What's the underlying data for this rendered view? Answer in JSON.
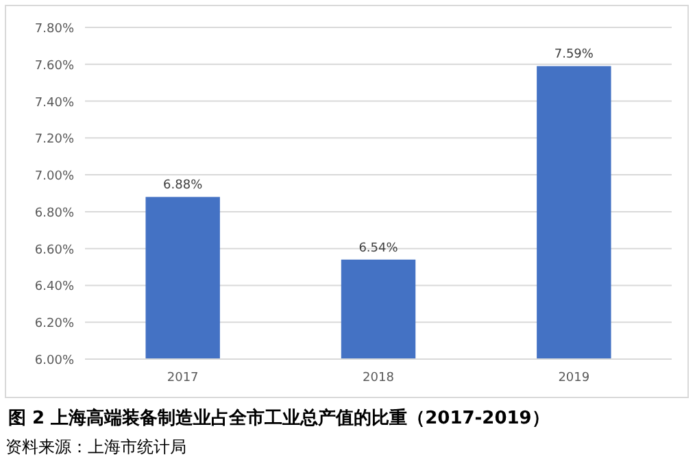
{
  "chart_data": {
    "type": "bar",
    "title": "图 2 上海高端装备制造业占全市工业总产值的比重（2017-2019）",
    "annotations": [
      "资料来源：上海市统计局"
    ],
    "categories": [
      "2017",
      "2018",
      "2019"
    ],
    "values": [
      6.88,
      6.54,
      7.59
    ],
    "value_labels": [
      "6.88%",
      "6.54%",
      "7.59%"
    ],
    "color": "#4472c4",
    "ylim": [
      6.0,
      7.8
    ],
    "yticks": [
      {
        "value": 6.0,
        "label": "6.00%"
      },
      {
        "value": 6.2,
        "label": "6.20%"
      },
      {
        "value": 6.4,
        "label": "6.40%"
      },
      {
        "value": 6.6,
        "label": "6.60%"
      },
      {
        "value": 6.8,
        "label": "6.80%"
      },
      {
        "value": 7.0,
        "label": "7.00%"
      },
      {
        "value": 7.2,
        "label": "7.20%"
      },
      {
        "value": 7.4,
        "label": "7.40%"
      },
      {
        "value": 7.6,
        "label": "7.60%"
      },
      {
        "value": 7.8,
        "label": "7.80%"
      }
    ],
    "grid": "y"
  }
}
